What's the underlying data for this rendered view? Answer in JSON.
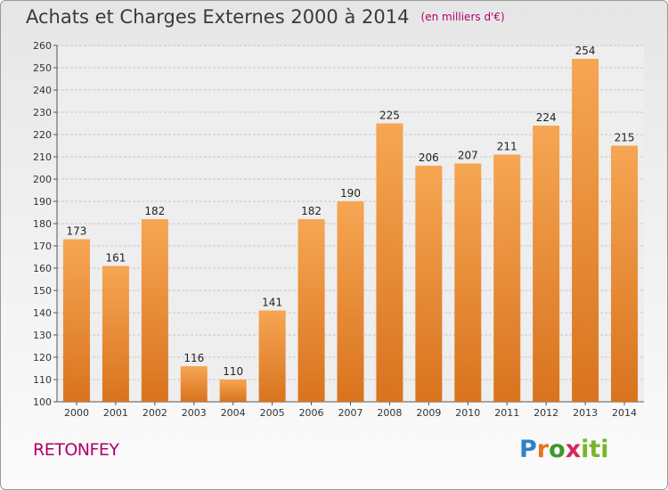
{
  "title": "Achats et Charges Externes 2000 à 2014",
  "subtitle": "(en milliers d'€)",
  "commune": "RETONFEY",
  "brand": "Proxiti",
  "colors": {
    "bar_light": "#f6a653",
    "bar_dark": "#d9731e",
    "grid": "#c8c8c8",
    "title": "#3a3a3a",
    "accent": "#b0006a"
  },
  "chart_data": {
    "type": "bar",
    "categories": [
      "2000",
      "2001",
      "2002",
      "2003",
      "2004",
      "2005",
      "2006",
      "2007",
      "2008",
      "2009",
      "2010",
      "2011",
      "2012",
      "2013",
      "2014"
    ],
    "values": [
      173,
      161,
      182,
      116,
      110,
      141,
      182,
      190,
      225,
      206,
      207,
      211,
      224,
      254,
      215
    ],
    "ylim": [
      100,
      260
    ],
    "yticks": [
      100,
      110,
      120,
      130,
      140,
      150,
      160,
      170,
      180,
      190,
      200,
      210,
      220,
      230,
      240,
      250,
      260
    ],
    "grid": true,
    "data_labels": true
  }
}
